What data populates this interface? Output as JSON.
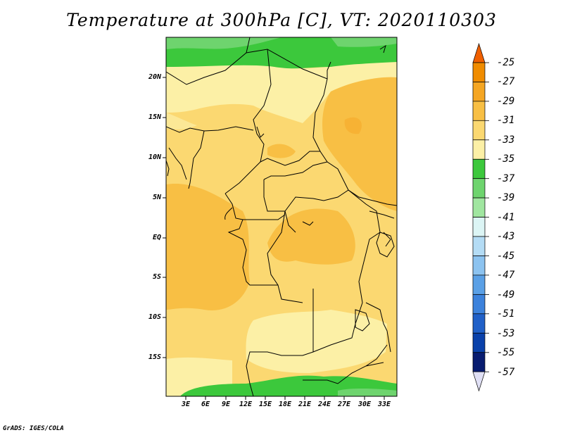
{
  "title": "Temperature at 300hPa [C], VT: 2020110303",
  "credit": "GrADS: IGES/COLA",
  "map": {
    "lat_labels": [
      "20N",
      "15N",
      "10N",
      "5N",
      "EQ",
      "5S",
      "10S",
      "15S"
    ],
    "lon_labels": [
      "3E",
      "6E",
      "9E",
      "12E",
      "15E",
      "18E",
      "21E",
      "24E",
      "27E",
      "30E",
      "33E"
    ]
  },
  "colorbar": {
    "labels": [
      "-25",
      "-27",
      "-29",
      "-31",
      "-33",
      "-35",
      "-37",
      "-39",
      "-41",
      "-43",
      "-45",
      "-47",
      "-49",
      "-51",
      "-53",
      "-55",
      "-57"
    ],
    "colors": [
      "#f06000",
      "#f08c00",
      "#f5a623",
      "#f8bf44",
      "#fbd871",
      "#fcf0a6",
      "#3cc83c",
      "#6ed46e",
      "#a0e6a0",
      "#dcf5f5",
      "#b4dcf5",
      "#8cc3f0",
      "#5aa0e6",
      "#3c82dc",
      "#2060c8",
      "#0a41aa",
      "#081c70",
      "#e0e0f5"
    ]
  }
}
